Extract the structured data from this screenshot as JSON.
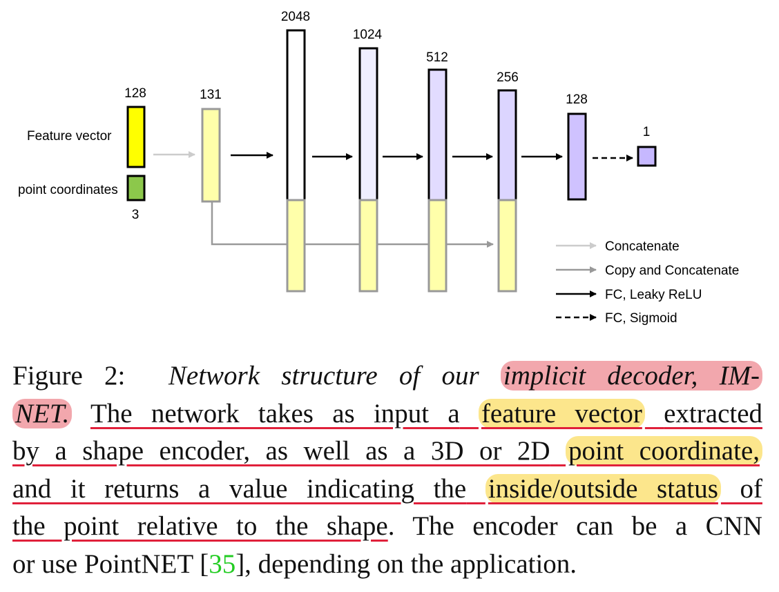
{
  "diagram": {
    "inputs": {
      "feature_label": "Feature vector",
      "feature_size": "128",
      "point_label": "point coordinates",
      "point_size": "3",
      "concat_size": "131"
    },
    "layers": [
      {
        "size": "2048"
      },
      {
        "size": "1024"
      },
      {
        "size": "512"
      },
      {
        "size": "256"
      },
      {
        "size": "128"
      },
      {
        "size": "1"
      }
    ],
    "legend": [
      {
        "label": "Concatenate"
      },
      {
        "label": "Copy and Concatenate"
      },
      {
        "label": "FC, Leaky ReLU"
      },
      {
        "label": "FC, Sigmoid"
      }
    ],
    "colors": {
      "feature": "#ffff00",
      "point": "#8cc84b",
      "copy": "#ffffaa",
      "l2048": "#ffffff",
      "l1024": "#efeeff",
      "l512": "#e2dcff",
      "l256": "#dcd5ff",
      "l128": "#cfc2ff",
      "l1": "#c6b8ff",
      "arrow_light": "#cccccc",
      "arrow_gray": "#999999"
    }
  },
  "caption": {
    "line1_a": "Figure 2:",
    "line1_b": "Network structure of our",
    "line1_c": "implicit decoder, IM-",
    "line2_a": "NET.",
    "line2_b": "The network takes as input a",
    "line2_c": "feature vector",
    "line2_d": "extracted",
    "line3_a": "by a shape encoder, as well as a 3D or 2D",
    "line3_b": "point coordinate,",
    "line4_a": "and it returns a value indicating the",
    "line4_b": "inside/outside status",
    "line4_c": "of",
    "line5_a": "the point relative to the shape",
    "line5_b": ".",
    "line5_c": "The encoder can be a CNN",
    "line6_a": "or use PointNET [",
    "line6_cite": "35",
    "line6_b": "], depending on the application."
  }
}
